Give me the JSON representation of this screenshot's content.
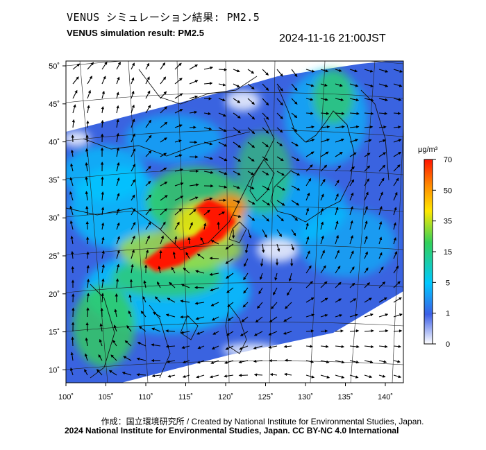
{
  "title_ja": "VENUS シミュレーション結果: PM2.5",
  "title_en": "VENUS simulation result: PM2.5",
  "timestamp": "2024-11-16 21:00JST",
  "colorbar": {
    "unit_label": "μg/m³",
    "ticks": [
      "0",
      "1",
      "5",
      "15",
      "35",
      "50",
      "70"
    ],
    "colors": [
      "#ffffff",
      "#3c5fe6",
      "#00c8ff",
      "#33d05a",
      "#ffe800",
      "#ff1400"
    ]
  },
  "map": {
    "lon_labels": [
      "100˚",
      "105˚",
      "110˚",
      "115˚",
      "120˚",
      "125˚",
      "130˚",
      "135˚",
      "140˚"
    ],
    "lat_labels": [
      "50˚",
      "45˚",
      "40˚",
      "35˚",
      "30˚",
      "25˚",
      "20˚",
      "15˚",
      "10˚"
    ]
  },
  "credit": {
    "line1": "作成：国立環境研究所 / Created by National Institute for Environmental Studies, Japan.",
    "line2": "2024 National Institute for Environmental Studies, Japan. CC BY-NC 4.0 International"
  }
}
